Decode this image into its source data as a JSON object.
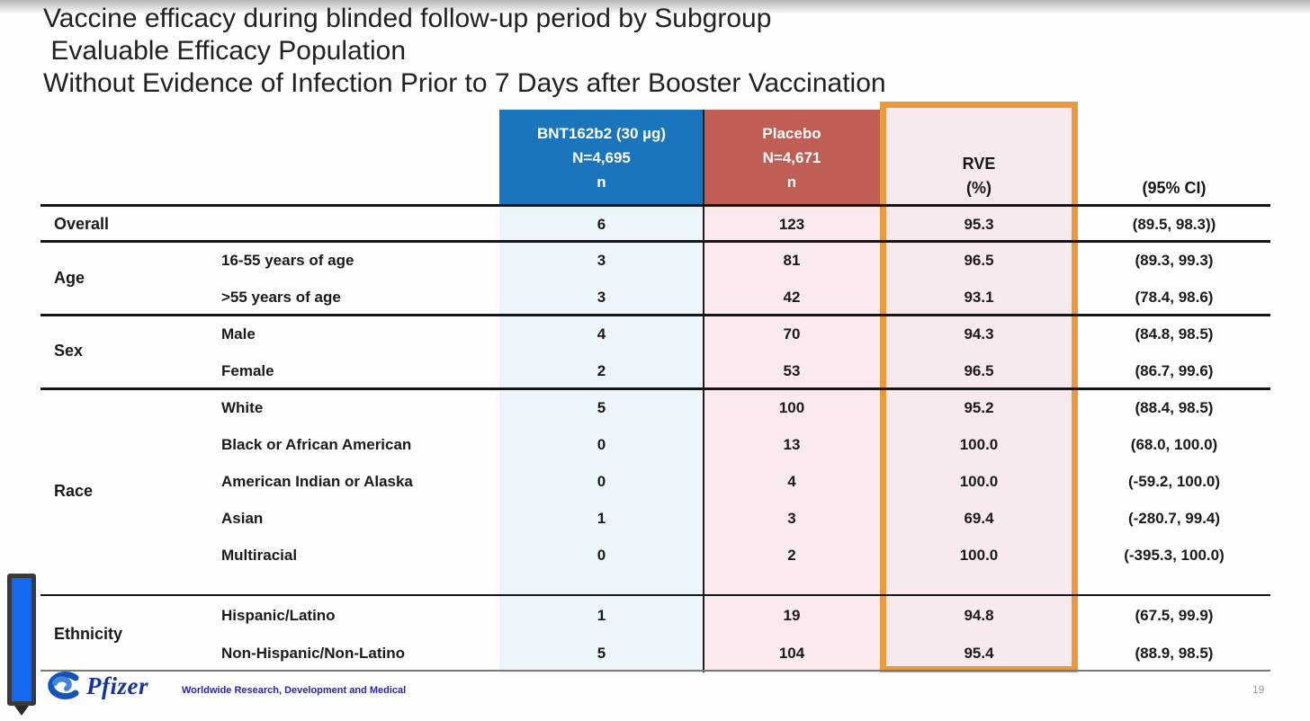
{
  "slide": {
    "title_lines": [
      "Vaccine efficacy during blinded follow-up period by Subgroup",
      " Evaluable Efficacy Population",
      "Without Evidence of Infection Prior to 7 Days after Booster Vaccination"
    ],
    "footer": {
      "brand": "Pfizer",
      "division": "Worldwide Research, Development and Medical",
      "page_number": "19"
    },
    "colors": {
      "bnt_header_blue": "#1a75bc",
      "placebo_header_red": "#c05e55",
      "rve_highlight_border_orange": "#e89a3e",
      "rve_highlight_fill_pink": "#f8e9ee",
      "bnt_column_tint": "#ecf5f9",
      "placebo_column_tint": "#faeaec",
      "pfizer_logo_blue": "#16349f",
      "scroll_thumb_blue": "#1668ee"
    }
  },
  "table": {
    "columns": {
      "bnt": {
        "lines": [
          "BNT162b2 (30 µg)",
          "N=4,695",
          "n"
        ]
      },
      "placebo": {
        "lines": [
          "Placebo",
          "N=4,671",
          "n"
        ]
      },
      "rve": {
        "lines": [
          "RVE",
          "(%)"
        ]
      },
      "ci": {
        "label": "(95% CI)"
      }
    },
    "side_labels": [
      "Age",
      "Sex",
      "Race",
      "Ethnicity"
    ],
    "rows": [
      {
        "group_cell": "Overall",
        "subgroup": "",
        "bnt": "6",
        "placebo": "123",
        "rve": "95.3",
        "ci": "(89.5, 98.3))"
      },
      {
        "group_cell": "",
        "subgroup": "16-55 years of age",
        "bnt": "3",
        "placebo": "81",
        "rve": "96.5",
        "ci": "(89.3, 99.3)"
      },
      {
        "group_cell": "",
        "subgroup": ">55 years of age",
        "bnt": "3",
        "placebo": "42",
        "rve": "93.1",
        "ci": "(78.4, 98.6)"
      },
      {
        "group_cell": "",
        "subgroup": "Male",
        "bnt": "4",
        "placebo": "70",
        "rve": "94.3",
        "ci": "(84.8, 98.5)"
      },
      {
        "group_cell": "",
        "subgroup": "Female",
        "bnt": "2",
        "placebo": "53",
        "rve": "96.5",
        "ci": "(86.7, 99.6)"
      },
      {
        "group_cell": "",
        "subgroup": "White",
        "bnt": "5",
        "placebo": "100",
        "rve": "95.2",
        "ci": "(88.4, 98.5)"
      },
      {
        "group_cell": "",
        "subgroup": "Black or African American",
        "bnt": "0",
        "placebo": "13",
        "rve": "100.0",
        "ci": "(68.0, 100.0)"
      },
      {
        "group_cell": "",
        "subgroup": "American Indian or Alaska",
        "bnt": "0",
        "placebo": "4",
        "rve": "100.0",
        "ci": "(-59.2, 100.0)"
      },
      {
        "group_cell": "",
        "subgroup": "Asian",
        "bnt": "1",
        "placebo": "3",
        "rve": "69.4",
        "ci": "(-280.7, 99.4)"
      },
      {
        "group_cell": "",
        "subgroup": "Multiracial",
        "bnt": "0",
        "placebo": "2",
        "rve": "100.0",
        "ci": "(-395.3, 100.0)"
      },
      {
        "group_cell": "",
        "subgroup": "Hispanic/Latino",
        "bnt": "1",
        "placebo": "19",
        "rve": "94.8",
        "ci": "(67.5, 99.9)"
      },
      {
        "group_cell": "",
        "subgroup": "Non-Hispanic/Non-Latino",
        "bnt": "5",
        "placebo": "104",
        "rve": "95.4",
        "ci": "(88.9, 98.5)"
      }
    ]
  }
}
